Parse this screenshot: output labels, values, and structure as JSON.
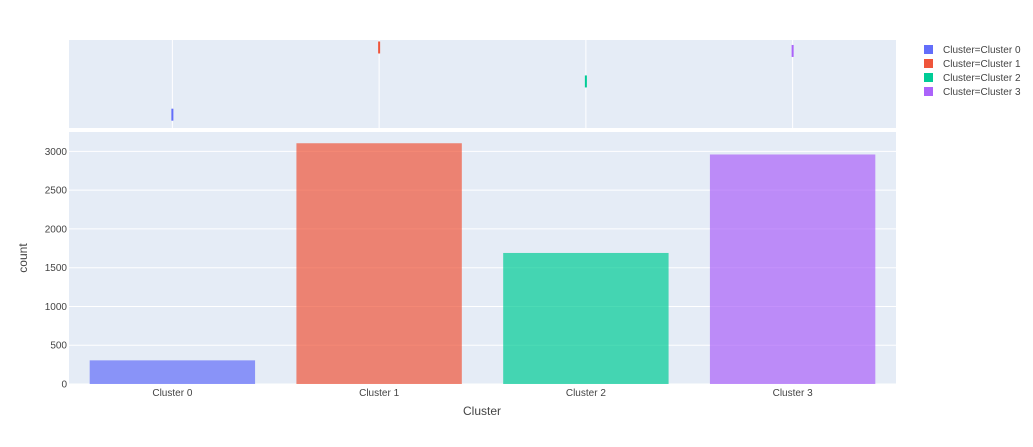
{
  "chart_data": {
    "type": "bar",
    "title": "",
    "xlabel": "Cluster",
    "ylabel": "count",
    "categories": [
      "Cluster 0",
      "Cluster 1",
      "Cluster 2",
      "Cluster 3"
    ],
    "values": [
      305,
      3105,
      1690,
      2960
    ],
    "ylim": [
      0,
      3250
    ],
    "yticks": [
      0,
      500,
      1000,
      1500,
      2000,
      2500,
      3000
    ],
    "grid": true,
    "legend_placement": "top-right",
    "legend": [
      {
        "label": "Cluster=Cluster 0",
        "color": "#636efa"
      },
      {
        "label": "Cluster=Cluster 1",
        "color": "#ef553b"
      },
      {
        "label": "Cluster=Cluster 2",
        "color": "#00cc96"
      },
      {
        "label": "Cluster=Cluster 3",
        "color": "#ab63fa"
      }
    ],
    "marginal": {
      "type": "rug",
      "values": [
        305,
        3105,
        1690,
        2960
      ]
    },
    "colors": {
      "plot_bg": "#e5ecf6",
      "grid": "#ffffff"
    }
  }
}
